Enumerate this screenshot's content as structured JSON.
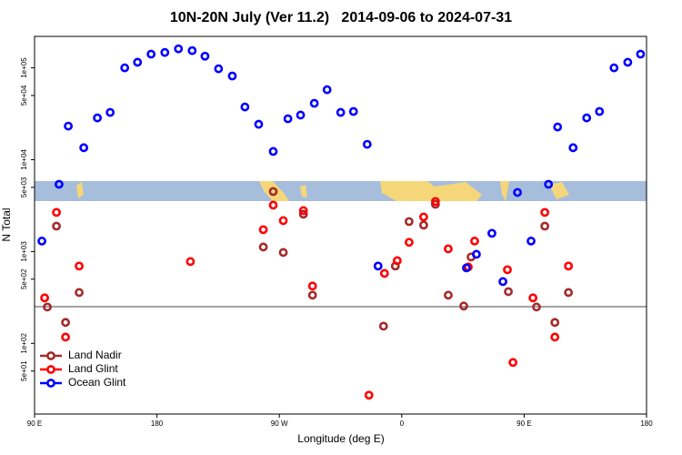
{
  "chart_data": {
    "type": "scatter",
    "title": "10N-20N July (Ver 11.2)   2014-09-06 to 2024-07-31",
    "x_label": "Longitude (deg E)",
    "y_label": "N Total",
    "log_y": true,
    "legend": "bottom-left",
    "xlim": [
      90,
      540
    ],
    "xticks": [
      {
        "value": 90,
        "label": "90 E"
      },
      {
        "value": 180,
        "label": "180"
      },
      {
        "value": 270,
        "label": "90 W"
      },
      {
        "value": 360,
        "label": "0"
      },
      {
        "value": 450,
        "label": "90 E"
      },
      {
        "value": 540,
        "label": "180"
      }
    ],
    "ylim": [
      17,
      220000
    ],
    "yticks": [
      {
        "value": 50,
        "label": "5e+01"
      },
      {
        "value": 100,
        "label": "1e+02"
      },
      {
        "value": 500,
        "label": "5e+02"
      },
      {
        "value": 1000,
        "label": "1e+03"
      },
      {
        "value": 5000,
        "label": "5e+03"
      },
      {
        "value": 10000,
        "label": "1e+04"
      },
      {
        "value": 50000,
        "label": "5e+04"
      },
      {
        "value": 100000,
        "label": "1e+05"
      }
    ],
    "series": [
      {
        "name": "Land Nadir",
        "color": "#a52a2a",
        "x": [
          99.4,
          106.1,
          112.8,
          122.8,
          258.2,
          265.5,
          272.9,
          287.7,
          294.4,
          346.6,
          355.3,
          365.4,
          376.1,
          384.8,
          394.2,
          405.6,
          411.0,
          438.4,
          459.1,
          465.2,
          472.6,
          482.6
        ],
        "values": [
          249,
          1890,
          169,
          358,
          1120,
          4500,
          977,
          2550,
          335,
          154,
          695,
          2120,
          1940,
          3270,
          335,
          255,
          873,
          366,
          249,
          1890,
          169,
          358
        ]
      },
      {
        "name": "Land Glint",
        "color": "#ff0000",
        "x": [
          97.4,
          106.1,
          112.8,
          122.8,
          204.6,
          258.2,
          265.5,
          272.9,
          287.7,
          294.4,
          335.9,
          347.3,
          356.7,
          365.4,
          376.1,
          384.8,
          394.2,
          408.9,
          413.6,
          437.7,
          441.8,
          456.5,
          465.2,
          472.6,
          482.6
        ],
        "values": [
          313,
          2670,
          117,
          695,
          778,
          1730,
          3200,
          2170,
          2790,
          421,
          27.3,
          578,
          796,
          1260,
          2380,
          3510,
          1070,
          679,
          1300,
          634,
          62,
          313,
          2670,
          117,
          695
        ]
      },
      {
        "name": "Ocean Glint",
        "color": "#0000ff",
        "x": [
          95.4,
          108,
          114.8,
          126.2,
          136.2,
          145.6,
          156.3,
          165.7,
          175.7,
          185.8,
          195.8,
          205.9,
          215.3,
          225.3,
          235.4,
          244.7,
          254.8,
          265.5,
          276.3,
          285.6,
          295.7,
          305.1,
          315.1,
          324.5,
          334.6,
          342.6,
          407.6,
          414.9,
          426.3,
          434.4,
          445.1,
          455.1,
          467.9,
          474.6,
          486.0,
          496.0,
          505.4,
          516.1,
          526.2,
          535.6
        ],
        "values": [
          1300,
          5400,
          23200,
          13500,
          28500,
          32700,
          100000,
          115000,
          141000,
          147000,
          161000,
          154000,
          134000,
          97700,
          81500,
          37500,
          24300,
          12300,
          27900,
          30600,
          41100,
          57800,
          32700,
          33500,
          14700,
          695,
          664,
          933,
          1580,
          471,
          4400,
          1300,
          5400,
          22700,
          13500,
          28500,
          33500,
          100000,
          115000,
          141000
        ]
      }
    ]
  }
}
